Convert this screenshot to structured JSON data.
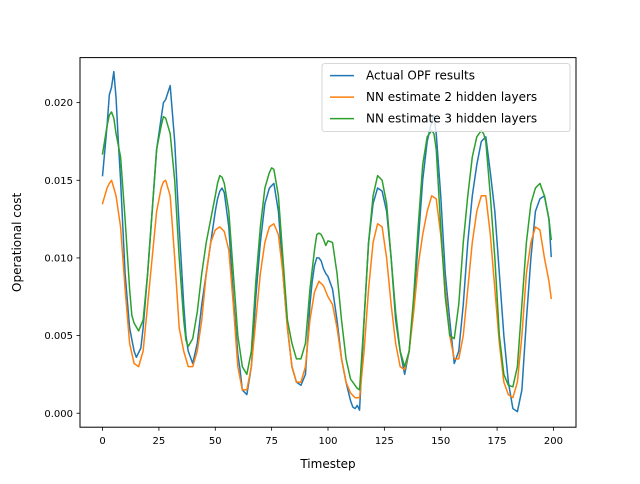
{
  "chart_data": {
    "type": "line",
    "xlabel": "Timestep",
    "ylabel": "Operational cost",
    "xlim": [
      -10,
      210
    ],
    "ylim": [
      -0.0009,
      0.0229
    ],
    "xticks": [
      0,
      25,
      50,
      75,
      100,
      125,
      150,
      175,
      200
    ],
    "xtick_labels": [
      "0",
      "25",
      "50",
      "75",
      "100",
      "125",
      "150",
      "175",
      "200"
    ],
    "yticks": [
      0.0,
      0.005,
      0.01,
      0.015,
      0.02
    ],
    "ytick_labels": [
      "0.000",
      "0.005",
      "0.010",
      "0.015",
      "0.020"
    ],
    "grid": false,
    "legend_position": "top-right",
    "series": [
      {
        "name": "Actual OPF results",
        "color": "#1f77b4",
        "x": [
          0,
          2,
          3,
          4,
          5,
          6,
          7,
          8,
          10,
          12,
          14,
          15,
          17,
          18,
          20,
          22,
          24,
          26,
          27,
          28,
          30,
          32,
          34,
          36,
          37,
          38,
          40,
          42,
          44,
          46,
          48,
          50,
          51,
          52,
          53,
          54,
          56,
          58,
          60,
          61,
          62,
          64,
          66,
          68,
          70,
          72,
          74,
          76,
          78,
          80,
          82,
          84,
          86,
          88,
          90,
          92,
          93,
          94,
          95,
          96,
          97,
          98,
          99,
          100,
          102,
          104,
          106,
          108,
          110,
          111,
          112,
          113,
          114,
          116,
          118,
          120,
          122,
          124,
          126,
          128,
          130,
          132,
          134,
          136,
          138,
          140,
          142,
          144,
          146,
          147,
          148,
          150,
          152,
          154,
          156,
          158,
          160,
          162,
          164,
          166,
          168,
          170,
          172,
          174,
          176,
          178,
          180,
          182,
          184,
          186,
          188,
          190,
          192,
          194,
          196,
          198,
          199
        ],
        "y": [
          0.0153,
          0.0185,
          0.0205,
          0.021,
          0.022,
          0.0203,
          0.0175,
          0.015,
          0.009,
          0.0055,
          0.004,
          0.0036,
          0.0042,
          0.0055,
          0.009,
          0.013,
          0.017,
          0.019,
          0.02,
          0.0202,
          0.0211,
          0.0175,
          0.012,
          0.007,
          0.005,
          0.004,
          0.0032,
          0.0045,
          0.007,
          0.009,
          0.011,
          0.013,
          0.0138,
          0.0143,
          0.0145,
          0.0142,
          0.012,
          0.0075,
          0.0038,
          0.0028,
          0.0015,
          0.0012,
          0.003,
          0.0075,
          0.011,
          0.0135,
          0.0145,
          0.0148,
          0.013,
          0.009,
          0.0055,
          0.003,
          0.002,
          0.0018,
          0.0025,
          0.007,
          0.0085,
          0.0095,
          0.01,
          0.01,
          0.0098,
          0.0093,
          0.009,
          0.0088,
          0.008,
          0.006,
          0.0035,
          0.002,
          0.0008,
          0.0004,
          0.0003,
          0.0005,
          0.0002,
          0.006,
          0.011,
          0.0135,
          0.0145,
          0.0143,
          0.013,
          0.01,
          0.006,
          0.004,
          0.0025,
          0.004,
          0.007,
          0.011,
          0.015,
          0.0175,
          0.0188,
          0.0192,
          0.018,
          0.014,
          0.009,
          0.006,
          0.0032,
          0.004,
          0.007,
          0.011,
          0.014,
          0.016,
          0.0175,
          0.0178,
          0.0155,
          0.013,
          0.009,
          0.005,
          0.002,
          0.0003,
          0.0001,
          0.0015,
          0.006,
          0.01,
          0.013,
          0.0138,
          0.014,
          0.0125,
          0.0101
        ]
      },
      {
        "name": "NN estimate 2 hidden layers",
        "color": "#ff7f0e",
        "x": [
          0,
          2,
          3,
          4,
          6,
          8,
          10,
          12,
          14,
          16,
          18,
          20,
          22,
          24,
          26,
          27,
          28,
          30,
          32,
          34,
          36,
          38,
          40,
          42,
          44,
          46,
          48,
          50,
          52,
          54,
          56,
          58,
          60,
          62,
          64,
          66,
          68,
          70,
          72,
          74,
          76,
          78,
          80,
          82,
          84,
          86,
          88,
          90,
          92,
          94,
          96,
          98,
          100,
          102,
          104,
          106,
          108,
          110,
          112,
          114,
          116,
          118,
          120,
          122,
          124,
          126,
          128,
          130,
          132,
          134,
          136,
          138,
          140,
          142,
          144,
          146,
          148,
          150,
          152,
          154,
          156,
          158,
          160,
          162,
          164,
          166,
          168,
          170,
          172,
          174,
          176,
          178,
          180,
          182,
          184,
          186,
          188,
          190,
          192,
          194,
          196,
          198,
          199
        ],
        "y": [
          0.0135,
          0.0145,
          0.0148,
          0.015,
          0.014,
          0.012,
          0.008,
          0.0045,
          0.0032,
          0.003,
          0.004,
          0.007,
          0.01,
          0.013,
          0.0145,
          0.0149,
          0.015,
          0.014,
          0.01,
          0.0055,
          0.004,
          0.003,
          0.003,
          0.004,
          0.006,
          0.009,
          0.011,
          0.0118,
          0.012,
          0.0117,
          0.0105,
          0.007,
          0.003,
          0.0015,
          0.0015,
          0.003,
          0.006,
          0.009,
          0.011,
          0.012,
          0.0122,
          0.0115,
          0.009,
          0.0055,
          0.003,
          0.002,
          0.002,
          0.003,
          0.006,
          0.0078,
          0.0085,
          0.0082,
          0.0075,
          0.007,
          0.0055,
          0.0035,
          0.002,
          0.0013,
          0.001,
          0.001,
          0.004,
          0.008,
          0.011,
          0.0122,
          0.012,
          0.01,
          0.007,
          0.0045,
          0.003,
          0.0028,
          0.004,
          0.0065,
          0.0095,
          0.0115,
          0.013,
          0.014,
          0.0138,
          0.0115,
          0.008,
          0.005,
          0.0035,
          0.0035,
          0.005,
          0.008,
          0.011,
          0.013,
          0.014,
          0.014,
          0.0115,
          0.008,
          0.0045,
          0.002,
          0.0012,
          0.001,
          0.002,
          0.005,
          0.009,
          0.011,
          0.012,
          0.0118,
          0.01,
          0.0085,
          0.0074
        ]
      },
      {
        "name": "NN estimate 3 hidden layers",
        "color": "#2ca02c",
        "x": [
          0,
          2,
          3,
          4,
          5,
          6,
          8,
          10,
          12,
          13,
          14,
          16,
          18,
          20,
          22,
          24,
          26,
          27,
          28,
          30,
          32,
          34,
          36,
          37,
          38,
          40,
          42,
          44,
          46,
          48,
          50,
          51,
          52,
          53,
          54,
          56,
          58,
          60,
          62,
          64,
          66,
          68,
          70,
          72,
          74,
          75,
          76,
          78,
          80,
          82,
          84,
          86,
          88,
          90,
          92,
          94,
          95,
          96,
          97,
          98,
          99,
          100,
          102,
          104,
          106,
          108,
          110,
          112,
          113,
          114,
          116,
          118,
          120,
          122,
          124,
          126,
          128,
          130,
          132,
          134,
          136,
          138,
          140,
          142,
          144,
          146,
          147,
          148,
          150,
          152,
          154,
          156,
          158,
          160,
          162,
          164,
          166,
          168,
          169,
          170,
          172,
          174,
          176,
          178,
          180,
          182,
          184,
          186,
          188,
          190,
          192,
          194,
          196,
          198,
          199
        ],
        "y": [
          0.0167,
          0.0185,
          0.0192,
          0.0194,
          0.019,
          0.018,
          0.0165,
          0.0125,
          0.008,
          0.0063,
          0.0058,
          0.0053,
          0.006,
          0.009,
          0.013,
          0.017,
          0.0185,
          0.0191,
          0.019,
          0.018,
          0.015,
          0.01,
          0.006,
          0.0047,
          0.0043,
          0.0048,
          0.0065,
          0.009,
          0.011,
          0.0125,
          0.014,
          0.0148,
          0.0153,
          0.0152,
          0.0148,
          0.013,
          0.009,
          0.005,
          0.003,
          0.0025,
          0.004,
          0.0085,
          0.012,
          0.0145,
          0.0155,
          0.0158,
          0.0157,
          0.014,
          0.01,
          0.006,
          0.0045,
          0.0035,
          0.0035,
          0.0045,
          0.008,
          0.0105,
          0.0115,
          0.0116,
          0.0115,
          0.0112,
          0.0108,
          0.0111,
          0.011,
          0.009,
          0.006,
          0.0035,
          0.0022,
          0.0018,
          0.0016,
          0.0015,
          0.006,
          0.011,
          0.014,
          0.0153,
          0.015,
          0.0135,
          0.01,
          0.0065,
          0.004,
          0.003,
          0.004,
          0.0075,
          0.012,
          0.016,
          0.0178,
          0.0182,
          0.018,
          0.017,
          0.012,
          0.0075,
          0.005,
          0.0048,
          0.007,
          0.011,
          0.014,
          0.0165,
          0.0178,
          0.0182,
          0.018,
          0.0175,
          0.014,
          0.01,
          0.005,
          0.0025,
          0.0018,
          0.0017,
          0.003,
          0.007,
          0.011,
          0.0135,
          0.0145,
          0.0148,
          0.014,
          0.0125,
          0.0112
        ]
      }
    ]
  }
}
